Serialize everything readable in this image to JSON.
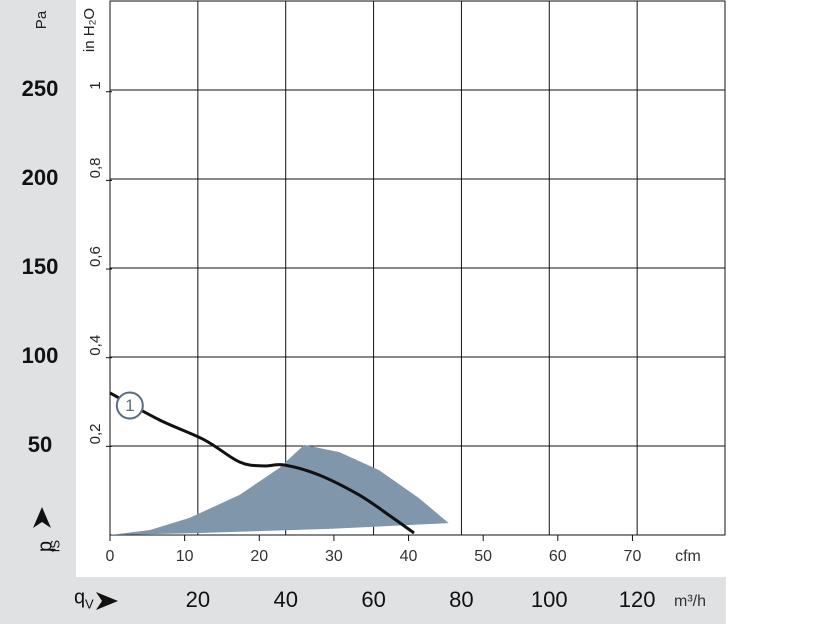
{
  "chart_data": {
    "type": "line",
    "ylabel": "Pa",
    "y2label": "in H₂O",
    "ylabel_symbol": "p",
    "ylabel_subscript": "fS",
    "xlabel_symbol": "q",
    "xlabel_subscript": "V",
    "xlabel": "m³/h",
    "x2label": "cfm",
    "xlim": [
      0,
      140
    ],
    "xticks": [
      20,
      40,
      60,
      80,
      100,
      120
    ],
    "x2lim": [
      0,
      82.4
    ],
    "x2ticks": [
      0,
      10,
      20,
      30,
      40,
      50,
      60,
      70
    ],
    "ylim": [
      0,
      300
    ],
    "yticks": [
      50,
      100,
      150,
      200,
      250
    ],
    "y2lim": [
      0,
      1.2047
    ],
    "y2ticks": [
      {
        "value": 0.2,
        "label": "0,2"
      },
      {
        "value": 0.4,
        "label": "0,4"
      },
      {
        "value": 0.6,
        "label": "0,6"
      },
      {
        "value": 0.8,
        "label": "0,8"
      },
      1
    ],
    "grid": true,
    "series": [
      {
        "name": "1",
        "color": "#111111",
        "x": [
          0,
          11.3,
          21.5,
          29.5,
          35.1,
          39.7,
          47.6,
          56.7,
          63.5,
          69.2
        ],
        "values": [
          79.8,
          64.6,
          53.4,
          41,
          38.8,
          39.3,
          33.7,
          22.5,
          11.2,
          1.1
        ]
      }
    ],
    "operating_range": {
      "color": "#7f96ab",
      "x": [
        0,
        9.1,
        18.1,
        29.5,
        38.5,
        44.2,
        52.2,
        61.2,
        70.3,
        77.1,
        49.9,
        20.4
      ],
      "values": [
        0,
        2.8,
        9.6,
        22.5,
        37.6,
        50.6,
        46.6,
        36.5,
        20.8,
        6.7,
        3.4,
        1.1
      ]
    }
  }
}
